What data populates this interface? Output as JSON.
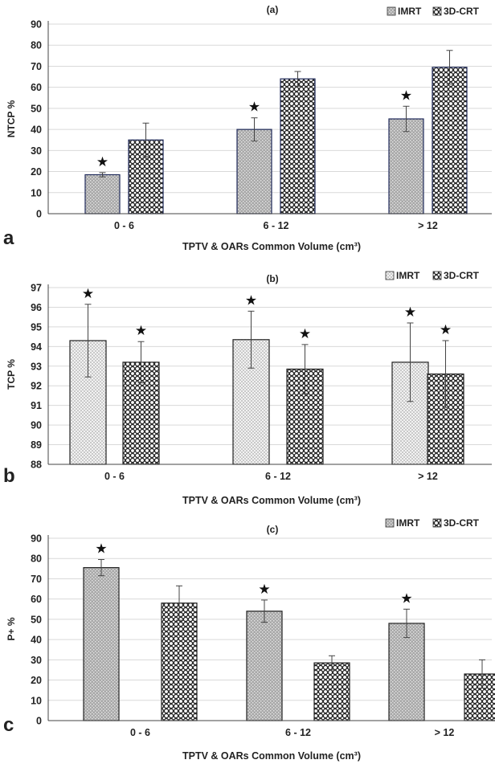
{
  "colors": {
    "imrt": "#b8b8b8",
    "crt": "#3c3c3c",
    "axis": "#222222",
    "grid": "#d9d9d9"
  },
  "chart_data": [
    {
      "type": "bar",
      "panel_letter": "a",
      "title": "(a)",
      "xlabel": "TPTV & OARs Common Volume (cm³)",
      "ylabel": "NTCP %",
      "categories": [
        "0 - 6",
        "6 - 12",
        "> 12"
      ],
      "ylim": [
        0,
        90
      ],
      "yticks": [
        "0",
        "10",
        "20",
        "30",
        "40",
        "50",
        "60",
        "70",
        "80",
        "90"
      ],
      "grid": true,
      "legend": "top-right",
      "series": [
        {
          "name": "IMRT",
          "values": [
            18.5,
            40,
            45
          ],
          "errors": [
            1,
            5.5,
            6
          ],
          "stars": [
            true,
            true,
            true
          ]
        },
        {
          "name": "3D-CRT",
          "values": [
            35,
            64,
            69.5
          ],
          "errors": [
            8,
            3.5,
            8
          ],
          "stars": [
            false,
            false,
            false
          ]
        }
      ]
    },
    {
      "type": "bar",
      "panel_letter": "b",
      "title": "(b)",
      "xlabel": "TPTV & OARs Common Volume (cm³)",
      "ylabel": "TCP %",
      "categories": [
        "0 - 6",
        "6 - 12",
        "> 12"
      ],
      "ylim": [
        88,
        97
      ],
      "yticks": [
        "88",
        "89",
        "90",
        "91",
        "92",
        "93",
        "94",
        "95",
        "96",
        "97"
      ],
      "grid": true,
      "legend": "top-right",
      "series": [
        {
          "name": "IMRT",
          "values": [
            94.3,
            94.35,
            93.2
          ],
          "errors": [
            1.85,
            1.45,
            2
          ],
          "stars": [
            true,
            true,
            true
          ]
        },
        {
          "name": "3D-CRT",
          "values": [
            93.2,
            92.85,
            92.6
          ],
          "errors": [
            1.05,
            1.25,
            1.7
          ],
          "stars": [
            true,
            true,
            true
          ]
        }
      ]
    },
    {
      "type": "bar",
      "panel_letter": "c",
      "title": "(c)",
      "xlabel": "TPTV & OARs Common Volume (cm³)",
      "ylabel": "P+ %",
      "categories": [
        "0 - 6",
        "6 - 12",
        "> 12"
      ],
      "ylim": [
        0,
        90
      ],
      "yticks": [
        "0",
        "10",
        "20",
        "30",
        "40",
        "50",
        "60",
        "70",
        "80",
        "90"
      ],
      "grid": true,
      "legend": "top-right",
      "series": [
        {
          "name": "IMRT",
          "values": [
            75.5,
            54,
            48
          ],
          "errors": [
            4,
            5.5,
            7
          ],
          "stars": [
            true,
            true,
            true
          ]
        },
        {
          "name": "3D-CRT",
          "values": [
            58,
            28.5,
            23
          ],
          "errors": [
            8.5,
            3.5,
            7
          ],
          "stars": [
            false,
            false,
            false
          ]
        }
      ]
    }
  ],
  "star_glyph": "★"
}
